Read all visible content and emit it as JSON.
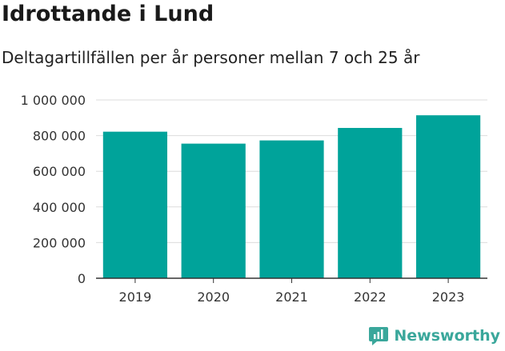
{
  "header": {
    "title": "Idrottande i Lund",
    "subtitle": "Deltagartillfällen per år personer mellan 7 och 25 år"
  },
  "brand": {
    "name": "Newsworthy",
    "icon": "newsworthy-logo-icon",
    "color": "#3aa79b"
  },
  "chart_data": {
    "type": "bar",
    "categories": [
      "2019",
      "2020",
      "2021",
      "2022",
      "2023"
    ],
    "values": [
      822000,
      755000,
      773000,
      843000,
      914000
    ],
    "ylim": [
      0,
      1000000
    ],
    "yticks": [
      0,
      200000,
      400000,
      600000,
      800000,
      1000000
    ],
    "ytick_labels": [
      "0",
      "200 000",
      "400 000",
      "600 000",
      "800 000",
      "1 000 000"
    ],
    "xlabel": "",
    "ylabel": "",
    "grid": true,
    "bar_color": "#00a39a"
  }
}
